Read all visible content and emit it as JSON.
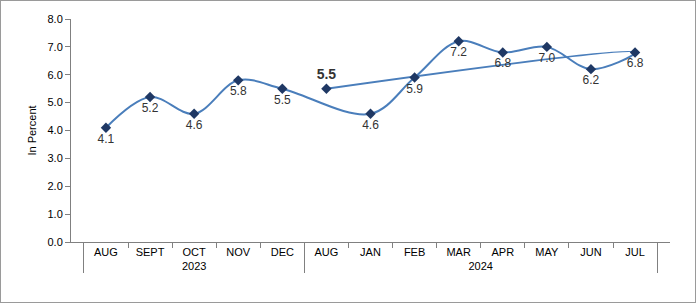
{
  "chart_data": {
    "type": "line",
    "y_label": "In Percent",
    "categories": [
      "AUG",
      "SEPT",
      "OCT",
      "NOV",
      "DEC",
      "JAN",
      "FEB",
      "MAR",
      "APR",
      "MAY",
      "JUN",
      "JUL",
      "AUG"
    ],
    "groups": [
      "2023",
      "2023",
      "2023",
      "2023",
      "2023",
      "2024",
      "2024",
      "2024",
      "2024",
      "2024",
      "2024",
      "2024",
      "2024"
    ],
    "values": [
      4.1,
      5.2,
      4.6,
      5.8,
      5.5,
      4.6,
      5.9,
      7.2,
      6.8,
      7.0,
      6.2,
      6.8,
      5.5
    ],
    "value_labels": [
      "4.1",
      "5.2",
      "4.6",
      "5.8",
      "5.5",
      "4.6",
      "5.9",
      "7.2",
      "6.8",
      "7.0",
      "6.2",
      "6.8",
      "5.5"
    ],
    "color": "#4a7ebb",
    "marker": "diamond",
    "line_style": "smooth",
    "ylim": [
      0,
      8
    ],
    "yticks": [
      {
        "value": 0,
        "label": "0.0"
      },
      {
        "value": 1,
        "label": "1.0"
      },
      {
        "value": 2,
        "label": "2.0"
      },
      {
        "value": 3,
        "label": "3.0"
      },
      {
        "value": 4,
        "label": "4.0"
      },
      {
        "value": 5,
        "label": "5.0"
      },
      {
        "value": 6,
        "label": "6.0"
      },
      {
        "value": 7,
        "label": "7.0"
      },
      {
        "value": 8,
        "label": "8.0"
      }
    ],
    "grid": false,
    "data_labels": true
  }
}
